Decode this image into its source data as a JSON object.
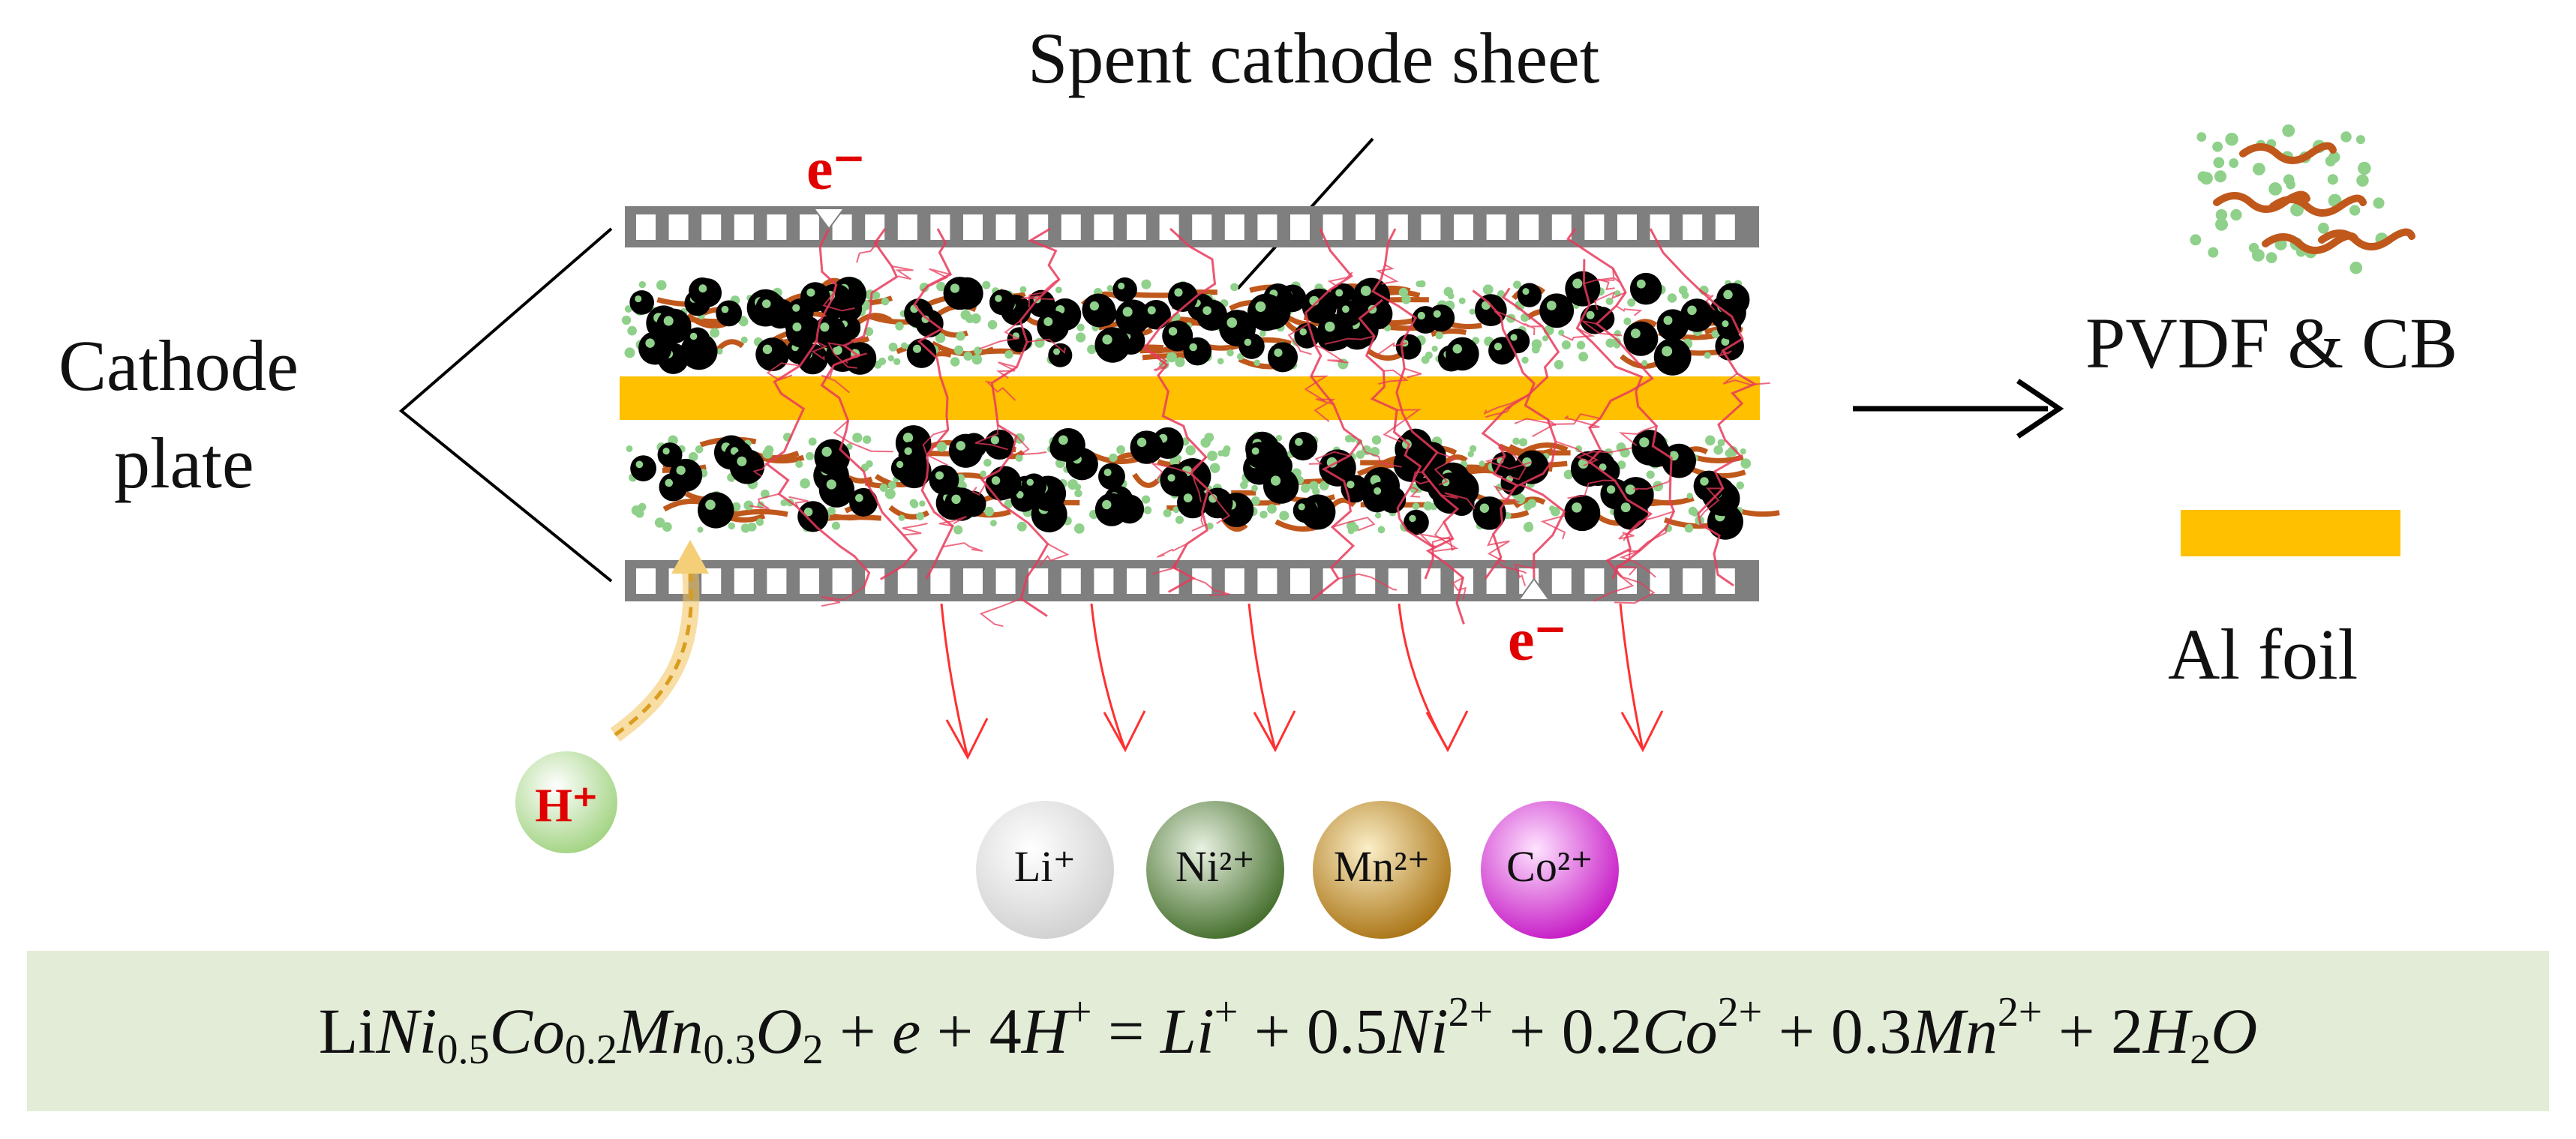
{
  "labels": {
    "spent_cathode_sheet": "Spent cathode sheet",
    "cathode_plate_line1": "Cathode",
    "cathode_plate_line2": "plate",
    "electron_top": "e⁻",
    "electron_bottom": "e⁻",
    "proton": "H⁺",
    "pvdf_cb": "PVDF & CB",
    "al_foil": "Al foil"
  },
  "ions": [
    {
      "label": "Li⁺",
      "color": "#e6e6e6"
    },
    {
      "label": "Ni²⁺",
      "color": "#4f7a35"
    },
    {
      "label": "Mn²⁺",
      "color": "#c08a1a"
    },
    {
      "label": "Co²⁺",
      "color": "#d62ad6"
    }
  ],
  "equation": {
    "lhs": [
      "LiNi0.5Co0.2Mn0.3O2",
      "e",
      "4H+"
    ],
    "rhs": [
      "Li+",
      "0.5Ni2+",
      "0.2Co2+",
      "0.3Mn2+",
      "2H2O"
    ]
  },
  "colors": {
    "al_foil": "#ffc000",
    "electrode_grid": "#7f7f7f",
    "active_particle": "#000000",
    "carbon_black": "#8fd08a",
    "binder": "#c0581c",
    "crack": "#e83a5a",
    "arrow_red": "#ff3030",
    "electron_text": "#e00000",
    "proton_text": "#e00000",
    "proton_arrow": "#f2c25a",
    "equation_band": "#e3ecd7"
  }
}
